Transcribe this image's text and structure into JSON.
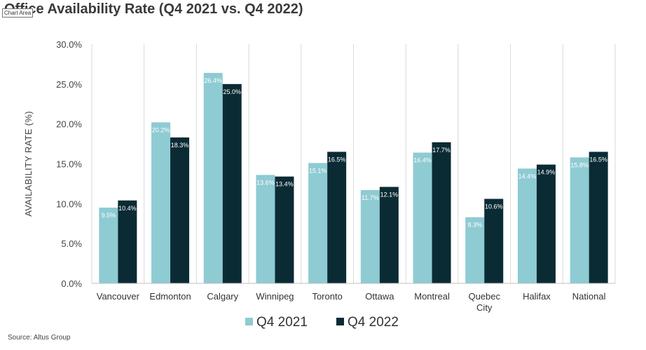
{
  "page": {
    "title": "Office Availability Rate (Q4 2021 vs. Q4 2022)",
    "tooltip": "Chart Area",
    "source": "Source: Altus Group"
  },
  "colors": {
    "q4_2021": "#8ecbd3",
    "q4_2022": "#0b2b34",
    "grid": "#d9d9d9",
    "axis": "#bfbfbf"
  },
  "chart_data": {
    "type": "bar",
    "title": "Office Availability Rate (Q4 2021 vs. Q4 2022)",
    "ylabel": "AVAILABILITY RATE (%)",
    "xlabel": "",
    "categories": [
      "Vancouver",
      "Edmonton",
      "Calgary",
      "Winnipeg",
      "Toronto",
      "Ottawa",
      "Montreal",
      "Quebec City",
      "Halifax",
      "National"
    ],
    "ylim": [
      0,
      30
    ],
    "yticks": [
      "0.0%",
      "5.0%",
      "10.0%",
      "15.0%",
      "20.0%",
      "25.0%",
      "30.0%"
    ],
    "grid": "vertical category separators",
    "legend": "bottom-center",
    "series": [
      {
        "name": "Q4 2021",
        "values": [
          9.5,
          20.2,
          26.4,
          13.6,
          15.1,
          11.7,
          16.4,
          8.3,
          14.4,
          15.8
        ],
        "labels": [
          "9.5%",
          "20.2%",
          "26.4%",
          "13.6%",
          "15.1%",
          "11.7%",
          "16.4%",
          "8.3%",
          "14.4%",
          "15.8%"
        ]
      },
      {
        "name": "Q4 2022",
        "values": [
          10.4,
          18.3,
          25.0,
          13.4,
          16.5,
          12.1,
          17.7,
          10.6,
          14.9,
          16.5
        ],
        "labels": [
          "10.4%",
          "18.3%",
          "25.0%",
          "13.4%",
          "16.5%",
          "12.1%",
          "17.7%",
          "10.6%",
          "14.9%",
          "16.5%"
        ]
      }
    ]
  }
}
